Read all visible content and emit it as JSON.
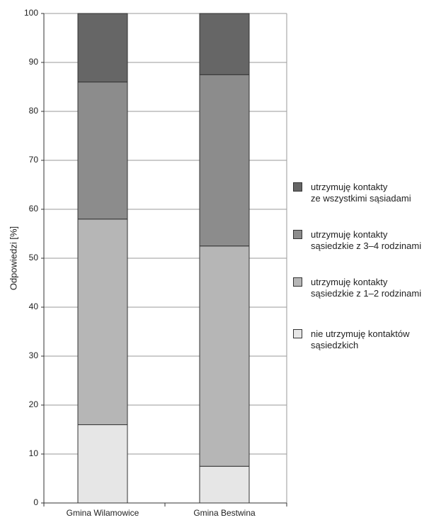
{
  "chart_data": {
    "type": "stacked_bar",
    "categories": [
      "Gmina Wilamowice",
      "Gmina Bestwina"
    ],
    "series": [
      {
        "name": "nie utrzymuję kontaktów sąsiedzkich",
        "values": [
          16,
          7.5
        ],
        "color": "#e6e6e6"
      },
      {
        "name": "utrzymuję kontakty sąsiedzkie z 1–2 rodzinami",
        "values": [
          42,
          45
        ],
        "color": "#b6b6b6"
      },
      {
        "name": "utrzymuję kontakty sąsiedzkie z 3–4 rodzinami",
        "values": [
          28,
          35
        ],
        "color": "#8c8c8c"
      },
      {
        "name": "utrzymuję kontakty ze wszystkimi sąsiadami",
        "values": [
          14,
          12.5
        ],
        "color": "#666666"
      }
    ],
    "ylabel": "Odpowiedzi [%]",
    "ylim": [
      0,
      100
    ],
    "yticks": [
      "0",
      "10",
      "20",
      "30",
      "40",
      "50",
      "60",
      "70",
      "80",
      "90",
      "100"
    ],
    "grid": true,
    "legend_position": "right"
  },
  "legend": [
    {
      "lines": [
        "utrzymuję kontakty",
        "ze wszystkimi sąsiadami"
      ]
    },
    {
      "lines": [
        "utrzymuję kontakty",
        "sąsiedzkie z 3–4 rodzinami"
      ]
    },
    {
      "lines": [
        "utrzymuję kontakty",
        "sąsiedzkie z 1–2 rodzinami"
      ]
    },
    {
      "lines": [
        "nie utrzymuję kontaktów",
        "sąsiedzkich"
      ]
    }
  ]
}
